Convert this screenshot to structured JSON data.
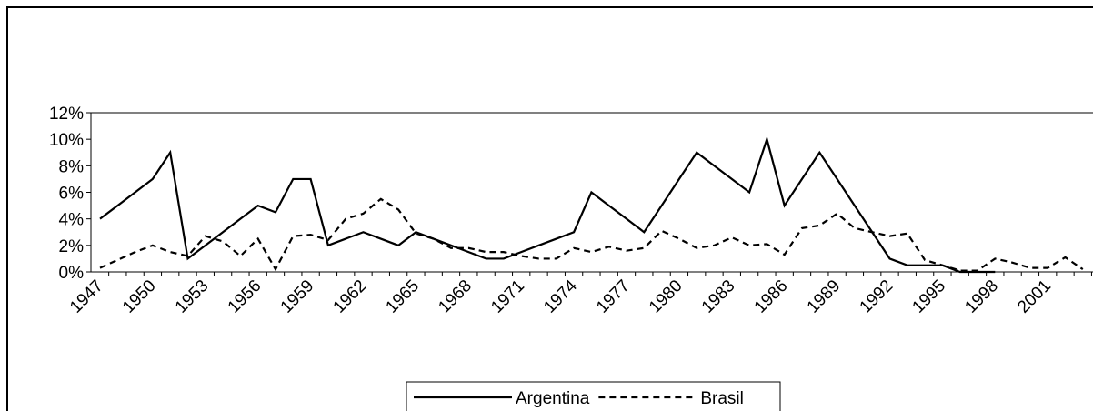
{
  "chart_data": {
    "type": "line",
    "categories": [
      "1947",
      null,
      null,
      "1950",
      null,
      null,
      "1953",
      null,
      null,
      "1956",
      null,
      null,
      "1959",
      null,
      null,
      "1962",
      null,
      null,
      "1965",
      null,
      null,
      "1968",
      null,
      null,
      "1971",
      null,
      null,
      "1974",
      null,
      null,
      "1977",
      null,
      null,
      "1980",
      null,
      null,
      "1983",
      null,
      null,
      "1986",
      null,
      null,
      "1989",
      null,
      null,
      "1992",
      null,
      null,
      "1995",
      null,
      null,
      "1998",
      null,
      null,
      "2001",
      null,
      null
    ],
    "series": [
      {
        "name": "Argentina",
        "color": "#000000",
        "dash": "solid",
        "values": [
          4,
          5,
          6,
          7,
          9,
          1,
          2,
          3,
          4,
          5,
          4.5,
          7,
          7,
          2,
          2.5,
          3,
          2.5,
          2,
          3,
          2.5,
          2,
          1.5,
          1,
          1,
          1.5,
          2,
          2.5,
          3,
          6,
          5,
          4,
          3,
          5,
          7,
          9,
          8,
          7,
          6,
          10,
          5,
          7,
          9,
          7,
          5,
          3,
          1,
          0.5,
          0.5,
          0.5,
          0,
          0,
          0,
          null,
          null,
          null,
          null,
          null
        ]
      },
      {
        "name": "Brasil",
        "color": "#000000",
        "dash": "dashed",
        "values": [
          0.3,
          0.9,
          1.5,
          2,
          1.5,
          1.2,
          2.7,
          2.3,
          1.2,
          2.5,
          0.2,
          2.7,
          2.8,
          2.4,
          4,
          4.4,
          5.5,
          4.7,
          2.9,
          2.5,
          1.8,
          1.8,
          1.5,
          1.5,
          1.2,
          1,
          1,
          1.8,
          1.5,
          1.9,
          1.6,
          1.8,
          3.1,
          2.5,
          1.8,
          2,
          2.6,
          2,
          2.1,
          1.3,
          3.3,
          3.5,
          4.4,
          3.3,
          3,
          2.7,
          2.9,
          0.9,
          0.5,
          0.1,
          0.1,
          1,
          0.7,
          0.3,
          0.3,
          1.1,
          0.2
        ]
      }
    ],
    "ylim": [
      0,
      12
    ],
    "yticks": [
      {
        "value": 0,
        "label": "0%"
      },
      {
        "value": 2,
        "label": "2%"
      },
      {
        "value": 4,
        "label": "4%"
      },
      {
        "value": 6,
        "label": "6%"
      },
      {
        "value": 8,
        "label": "8%"
      },
      {
        "value": 10,
        "label": "10%"
      },
      {
        "value": 12,
        "label": "12%"
      }
    ],
    "legend": "bottom"
  }
}
